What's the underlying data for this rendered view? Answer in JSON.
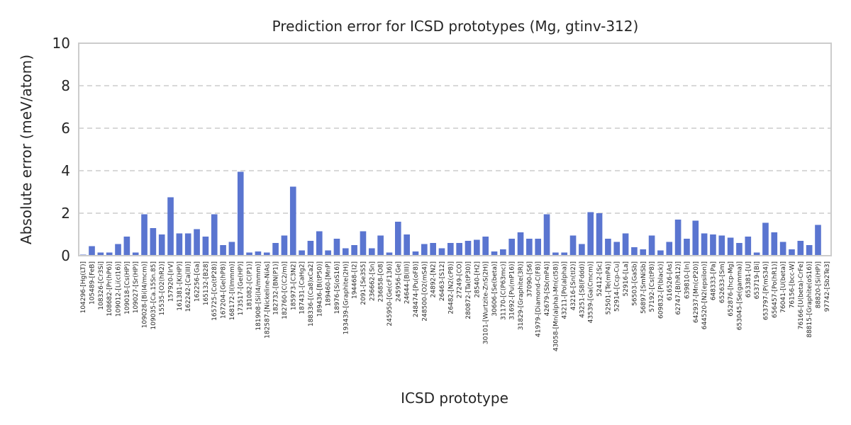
{
  "chart_data": {
    "type": "bar",
    "title": "Prediction error for ICSD prototypes (Mg, gtinv-312)",
    "xlabel": "ICSD prototype",
    "ylabel": "Absolute error (meV/atom)",
    "ylim": [
      0,
      10
    ],
    "yticks": [
      0,
      2,
      4,
      6,
      8,
      10
    ],
    "grid": "horizontal dashed",
    "bar_color": "#5a75d0",
    "categories": [
      "104296-[Hg(LT)]",
      "105489-[FeB]",
      "108326-[Cr3Si]",
      "108682-[Pr(hP6)]",
      "109012-[Li(cI16)]",
      "109018-[Cs(HP)]",
      "109027-[Sr(HP)]",
      "109028-[Bi(I4/mcm)]",
      "109035-[Ca.15Sn.85]",
      "15535-[O2(hR2)]",
      "157920-[IrV]",
      "161381-[K(HP)]",
      "162242-[Ca(III)]",
      "162256-[Ga]",
      "165132-[B28]",
      "165725-[Co(tP28)]",
      "167204-[Ge(hP8)]",
      "168172-[I(Immm)]",
      "173517-[Ge(HP)]",
      "181082-[C(P1)]",
      "181908-[Si(I4/mmm)]",
      "182587-[Nickeline-NiAs]",
      "182732-[BN(P1)]",
      "182760-[C(C2/m)]",
      "185973-[C3N2]",
      "187431-[CaHg2]",
      "188336-[(Ca8)xCa2]",
      "189436-[B(tP50)]",
      "189460-[MnP]",
      "18976-[S(oS16)]",
      "193439-[Graphite(2H)]",
      "194468-[I2]",
      "2091-[Se3S5]",
      "236662-[Sn]",
      "236858-[O8]",
      "245950-[Ge(cF136)]",
      "245956-[Ge]",
      "24644-[B(III)]",
      "248474-[Pu(oF8)]",
      "248500-[O2(mS4)]",
      "24892-[N2]",
      "26463-[S12]",
      "26482-[N2(cP8)]",
      "27249-[CO]",
      "280872-[Ta(tP30)]",
      "28540-[H2]",
      "30101-[Wurtzite-ZnS(2H)]",
      "30606-[Se(beta)]",
      "31170-[C(P63mc)]",
      "31692-[Pu(mP16)]",
      "31829-[Graphite(3R)]",
      "37090-[S6]",
      "41979-[Diamond-C(F8)]",
      "42679-[Sb(mP4)]",
      "43058-[Mn(alpha)-Mn(cI58)]",
      "43211-[Po(alpha)]",
      "43216-[Sn(tI2)]",
      "43251-[S8(Fddd)]",
      "43539-[Ga(Cmcm)]",
      "52412-[Sc]",
      "52501-[Te(mP4)]",
      "52914-[Ccp-Cu]",
      "52916-[La]",
      "56503-[GaSb]",
      "56897-[SmNiSb]",
      "57192-[Cs(tP8)]",
      "609832-[P(black)]",
      "616526-[As]",
      "62747-[B(hR12)]",
      "639810-[In]",
      "642937-[Mn(cP20)]",
      "644520-[N2(epsilon)]",
      "648333-[Pa]",
      "652633-[Sm]",
      "652876-[hcp-Mg]",
      "653045-[Se(gamma)]",
      "653381-[U]",
      "653719-[Bi]",
      "653797-[P(mS34)]",
      "656457-[Po(hR1)]",
      "76041-[U(beta)]",
      "76156-[bcc-W]",
      "76166-[U(beta)-CrFe]",
      "88815-[Graphite(oS16)]",
      "88820-[Si(HP)]",
      "97742-[Sb2Te3]"
    ],
    "values": [
      0.05,
      0.45,
      0.15,
      0.15,
      0.55,
      0.9,
      0.15,
      1.95,
      1.3,
      1.0,
      2.75,
      1.05,
      1.05,
      1.25,
      0.9,
      1.95,
      0.5,
      0.65,
      3.95,
      0.15,
      0.2,
      0.15,
      0.6,
      0.95,
      3.25,
      0.25,
      0.7,
      1.15,
      0.25,
      0.8,
      0.35,
      0.5,
      1.15,
      0.35,
      0.95,
      0.15,
      1.6,
      1.0,
      0.2,
      0.55,
      0.6,
      0.35,
      0.6,
      0.6,
      0.7,
      0.75,
      0.9,
      0.2,
      0.3,
      0.8,
      1.1,
      0.8,
      0.8,
      1.95,
      0.15,
      0.15,
      0.95,
      0.55,
      2.05,
      2.0,
      0.8,
      0.65,
      1.05,
      0.4,
      0.3,
      0.95,
      0.25,
      0.65,
      1.7,
      0.8,
      1.65,
      1.05,
      1.0,
      0.95,
      0.85,
      0.6,
      0.9,
      0.15,
      1.55,
      1.1,
      0.65,
      0.3,
      0.7,
      0.5,
      1.45,
      0.0
    ]
  }
}
